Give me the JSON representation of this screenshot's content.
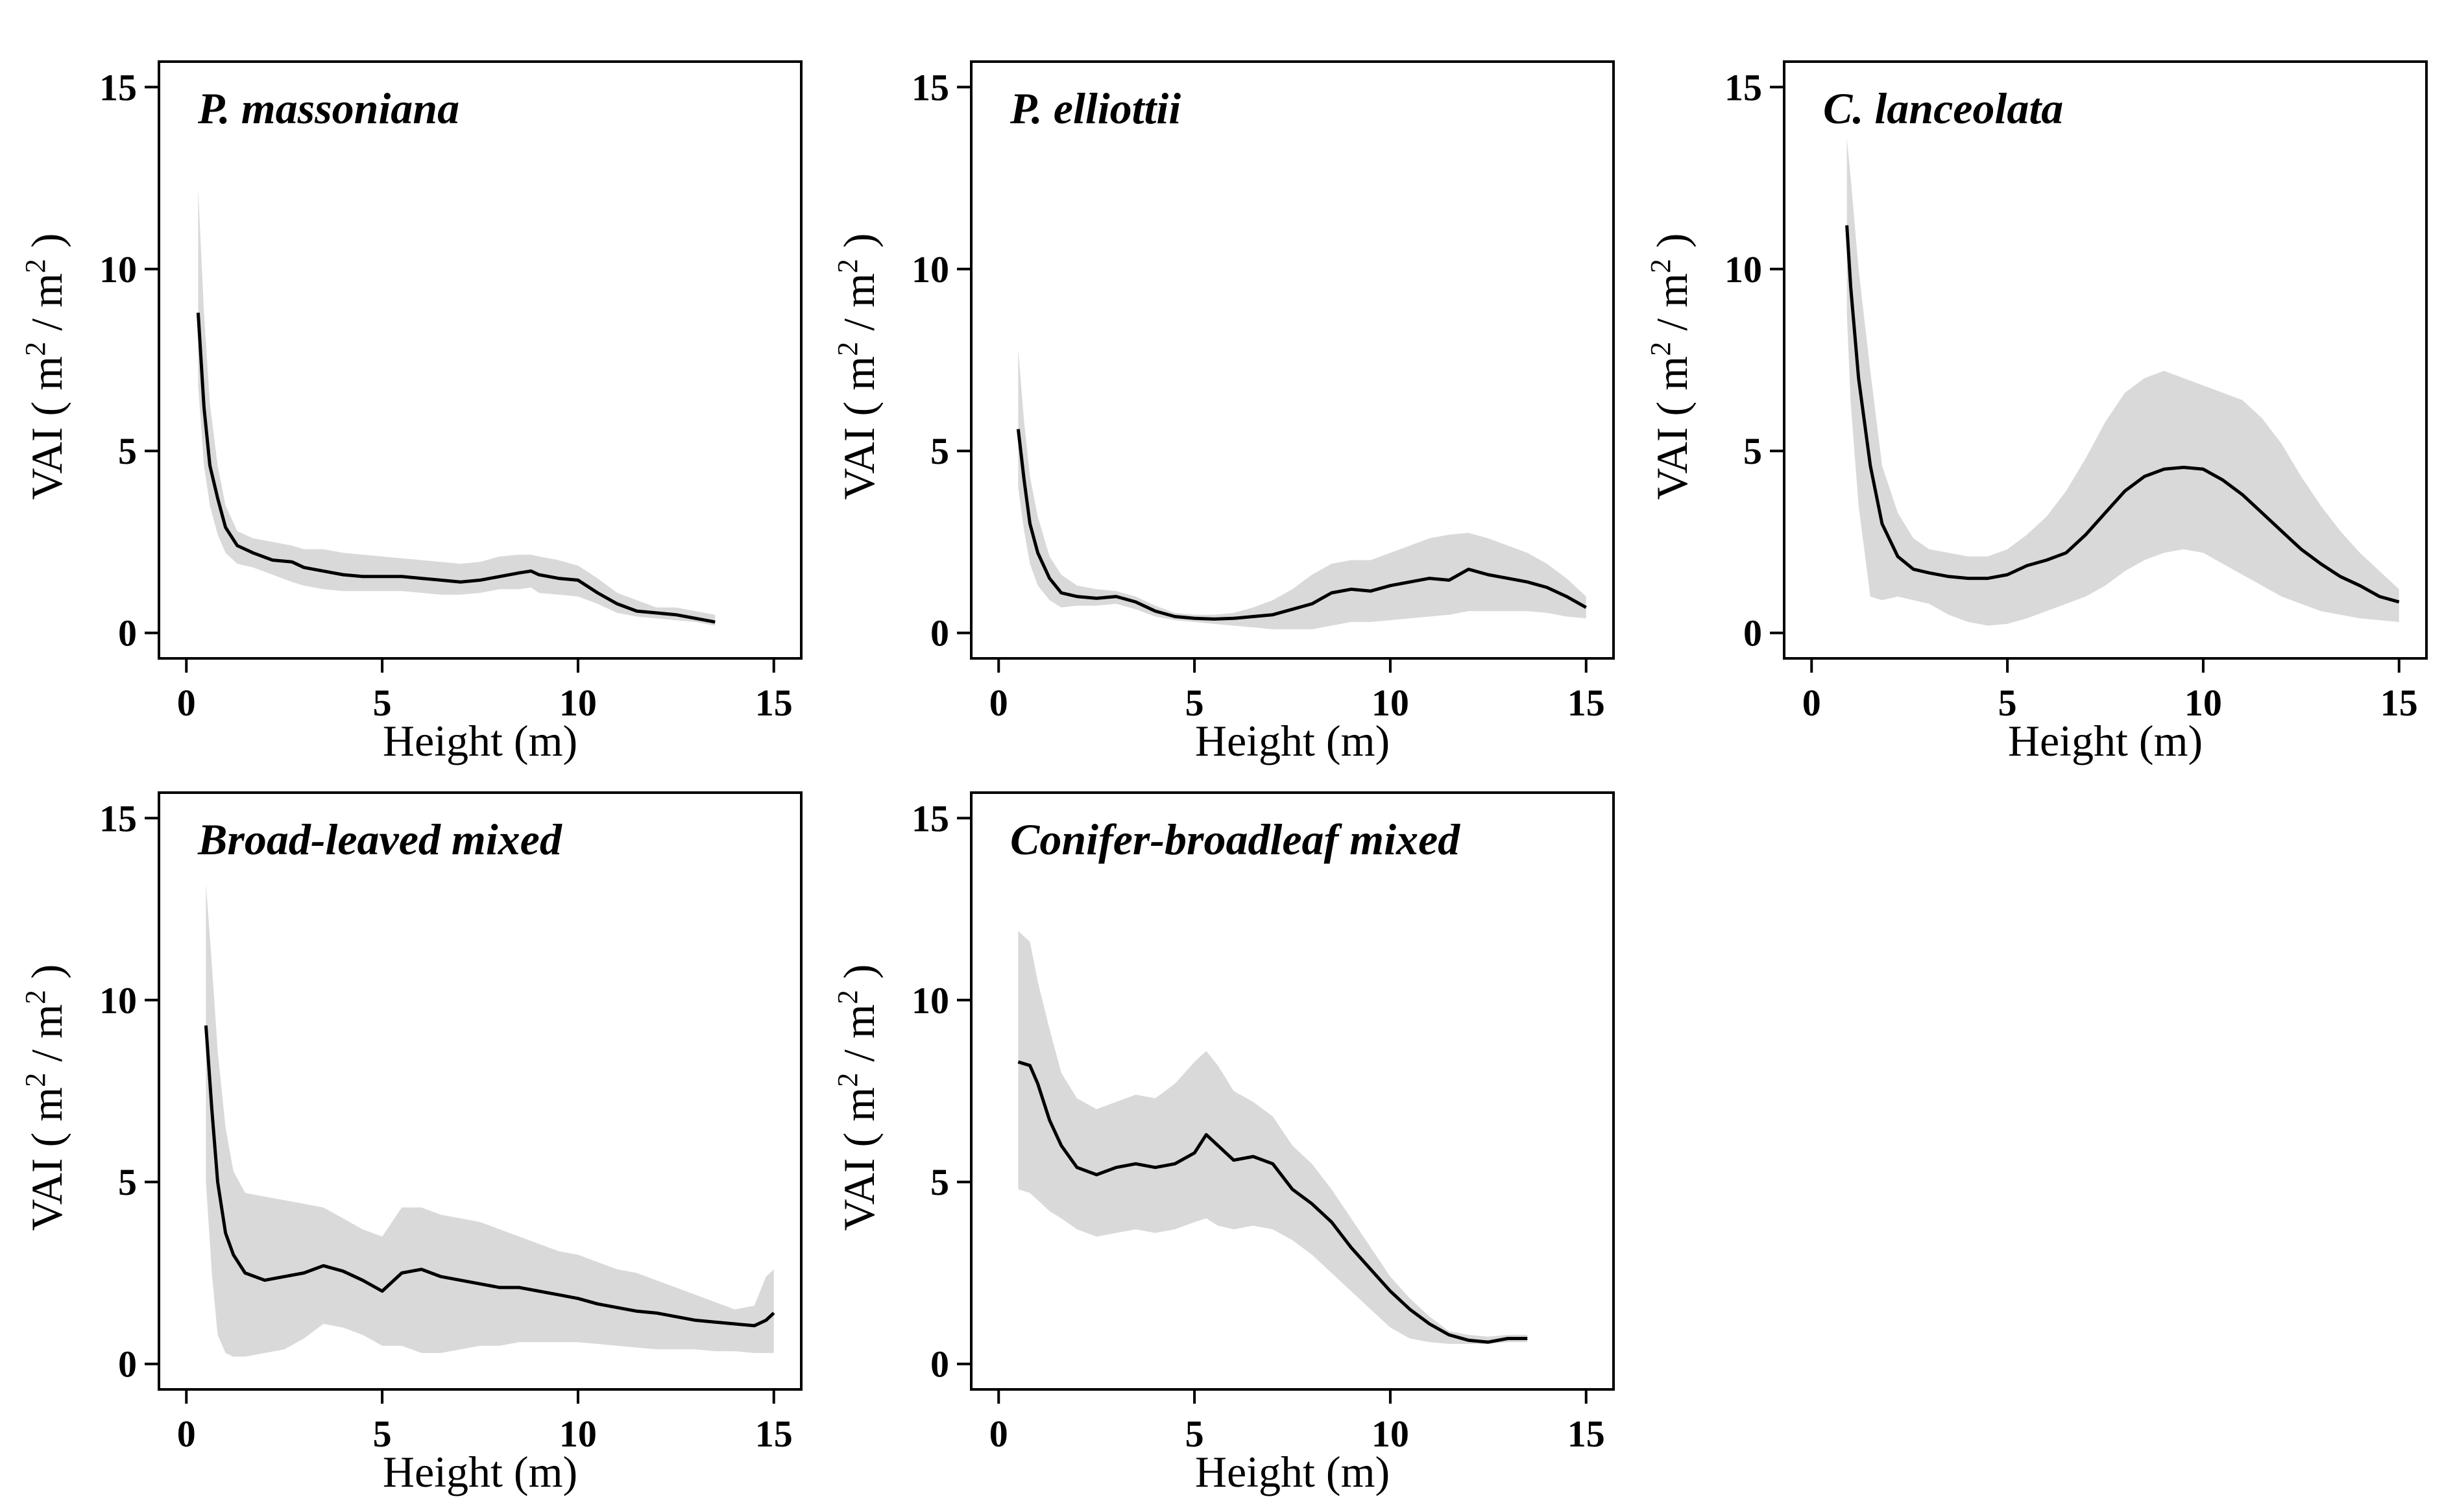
{
  "figure": {
    "background": "#ffffff",
    "band_color": "#d9d9d9",
    "line_color": "#000000",
    "frame_color": "#000000"
  },
  "chart_data": [
    {
      "id": "massoniana",
      "type": "line",
      "title": "P. massoniana",
      "xlabel": "Height (m)",
      "ylabel": "VAI",
      "ylabel_unit": [
        "m",
        "2",
        "m",
        "2"
      ],
      "xlim": [
        -0.7,
        15.7
      ],
      "ylim": [
        -0.7,
        15.7
      ],
      "xticks": [
        0,
        5,
        10,
        15
      ],
      "yticks": [
        0,
        5,
        10,
        15
      ],
      "mean": {
        "x": [
          0.3,
          0.45,
          0.6,
          0.8,
          1.0,
          1.3,
          1.7,
          2.2,
          2.7,
          3.0,
          3.5,
          4.0,
          4.5,
          5.0,
          5.5,
          6.0,
          6.5,
          7.0,
          7.5,
          8.0,
          8.5,
          8.8,
          9.0,
          9.5,
          10.0,
          10.5,
          11.0,
          11.5,
          12.0,
          12.5,
          13.0,
          13.5
        ],
        "y": [
          8.8,
          6.2,
          4.6,
          3.7,
          2.9,
          2.4,
          2.2,
          2.0,
          1.95,
          1.8,
          1.7,
          1.6,
          1.55,
          1.55,
          1.55,
          1.5,
          1.45,
          1.4,
          1.45,
          1.55,
          1.65,
          1.7,
          1.6,
          1.5,
          1.45,
          1.1,
          0.8,
          0.6,
          0.55,
          0.5,
          0.4,
          0.3
        ]
      },
      "band": {
        "x": [
          0.3,
          0.45,
          0.6,
          0.8,
          1.0,
          1.3,
          1.7,
          2.2,
          2.7,
          3.0,
          3.5,
          4.0,
          4.5,
          5.0,
          5.5,
          6.0,
          6.5,
          7.0,
          7.5,
          8.0,
          8.5,
          8.8,
          9.0,
          9.5,
          10.0,
          10.5,
          11.0,
          11.5,
          12.0,
          12.5,
          13.0,
          13.5
        ],
        "upper": [
          12.2,
          8.8,
          6.3,
          4.6,
          3.5,
          2.8,
          2.6,
          2.5,
          2.4,
          2.3,
          2.3,
          2.2,
          2.15,
          2.1,
          2.05,
          2.0,
          1.95,
          1.9,
          1.95,
          2.1,
          2.15,
          2.15,
          2.1,
          2.0,
          1.85,
          1.5,
          1.1,
          0.9,
          0.7,
          0.7,
          0.6,
          0.5
        ],
        "lower": [
          6.8,
          4.6,
          3.5,
          2.7,
          2.2,
          1.9,
          1.8,
          1.6,
          1.4,
          1.3,
          1.2,
          1.15,
          1.15,
          1.15,
          1.15,
          1.1,
          1.05,
          1.05,
          1.1,
          1.2,
          1.2,
          1.25,
          1.1,
          1.05,
          1.0,
          0.8,
          0.55,
          0.45,
          0.4,
          0.35,
          0.3,
          0.2
        ]
      }
    },
    {
      "id": "elliottii",
      "type": "line",
      "title": "P. elliottii",
      "xlabel": "Height (m)",
      "ylabel": "VAI",
      "ylabel_unit": [
        "m",
        "2",
        "m",
        "2"
      ],
      "xlim": [
        -0.7,
        15.7
      ],
      "ylim": [
        -0.7,
        15.7
      ],
      "xticks": [
        0,
        5,
        10,
        15
      ],
      "yticks": [
        0,
        5,
        10,
        15
      ],
      "mean": {
        "x": [
          0.5,
          0.65,
          0.8,
          1.0,
          1.3,
          1.6,
          2.0,
          2.5,
          3.0,
          3.5,
          4.0,
          4.5,
          5.0,
          5.5,
          6.0,
          6.5,
          7.0,
          7.5,
          8.0,
          8.5,
          9.0,
          9.5,
          10.0,
          10.5,
          11.0,
          11.5,
          12.0,
          12.5,
          13.0,
          13.5,
          14.0,
          14.5,
          15.0
        ],
        "y": [
          5.6,
          4.2,
          3.0,
          2.2,
          1.5,
          1.1,
          1.0,
          0.95,
          1.0,
          0.85,
          0.6,
          0.45,
          0.4,
          0.38,
          0.4,
          0.45,
          0.5,
          0.65,
          0.8,
          1.1,
          1.2,
          1.15,
          1.3,
          1.4,
          1.5,
          1.45,
          1.75,
          1.6,
          1.5,
          1.4,
          1.25,
          1.0,
          0.7
        ]
      },
      "band": {
        "x": [
          0.5,
          0.65,
          0.8,
          1.0,
          1.3,
          1.6,
          2.0,
          2.5,
          3.0,
          3.5,
          4.0,
          4.5,
          5.0,
          5.5,
          6.0,
          6.5,
          7.0,
          7.5,
          8.0,
          8.5,
          9.0,
          9.5,
          10.0,
          10.5,
          11.0,
          11.5,
          12.0,
          12.5,
          13.0,
          13.5,
          14.0,
          14.5,
          15.0
        ],
        "upper": [
          7.8,
          5.8,
          4.3,
          3.2,
          2.1,
          1.6,
          1.3,
          1.2,
          1.15,
          1.0,
          0.75,
          0.55,
          0.5,
          0.5,
          0.55,
          0.7,
          0.9,
          1.2,
          1.6,
          1.9,
          2.0,
          2.0,
          2.2,
          2.4,
          2.6,
          2.7,
          2.75,
          2.6,
          2.4,
          2.2,
          1.9,
          1.5,
          1.0
        ],
        "lower": [
          4.0,
          2.8,
          1.9,
          1.3,
          0.9,
          0.7,
          0.75,
          0.75,
          0.8,
          0.65,
          0.45,
          0.35,
          0.3,
          0.25,
          0.2,
          0.15,
          0.1,
          0.1,
          0.1,
          0.2,
          0.3,
          0.3,
          0.35,
          0.4,
          0.45,
          0.5,
          0.6,
          0.6,
          0.6,
          0.6,
          0.55,
          0.45,
          0.4
        ]
      }
    },
    {
      "id": "lanceolata",
      "type": "line",
      "title": "C. lanceolata",
      "xlabel": "Height (m)",
      "ylabel": "VAI",
      "ylabel_unit": [
        "m",
        "2",
        "m",
        "2"
      ],
      "xlim": [
        -0.7,
        15.7
      ],
      "ylim": [
        -0.7,
        15.7
      ],
      "xticks": [
        0,
        5,
        10,
        15
      ],
      "yticks": [
        0,
        5,
        10,
        15
      ],
      "mean": {
        "x": [
          0.9,
          1.0,
          1.2,
          1.5,
          1.8,
          2.2,
          2.6,
          3.0,
          3.5,
          4.0,
          4.5,
          5.0,
          5.5,
          6.0,
          6.5,
          7.0,
          7.5,
          8.0,
          8.5,
          9.0,
          9.5,
          10.0,
          10.5,
          11.0,
          11.5,
          12.0,
          12.5,
          13.0,
          13.5,
          14.0,
          14.5,
          15.0
        ],
        "y": [
          11.2,
          9.5,
          7.0,
          4.6,
          3.0,
          2.1,
          1.75,
          1.65,
          1.55,
          1.5,
          1.5,
          1.6,
          1.85,
          2.0,
          2.2,
          2.7,
          3.3,
          3.9,
          4.3,
          4.5,
          4.55,
          4.5,
          4.2,
          3.8,
          3.3,
          2.8,
          2.3,
          1.9,
          1.55,
          1.3,
          1.0,
          0.85
        ]
      },
      "band": {
        "x": [
          0.9,
          1.0,
          1.2,
          1.5,
          1.8,
          2.2,
          2.6,
          3.0,
          3.5,
          4.0,
          4.5,
          5.0,
          5.5,
          6.0,
          6.5,
          7.0,
          7.5,
          8.0,
          8.5,
          9.0,
          9.5,
          10.0,
          10.5,
          11.0,
          11.5,
          12.0,
          12.5,
          13.0,
          13.5,
          14.0,
          14.5,
          15.0
        ],
        "upper": [
          13.6,
          12.5,
          10.0,
          7.2,
          4.6,
          3.3,
          2.6,
          2.3,
          2.2,
          2.1,
          2.1,
          2.3,
          2.7,
          3.2,
          3.9,
          4.8,
          5.8,
          6.6,
          7.0,
          7.2,
          7.0,
          6.8,
          6.6,
          6.4,
          5.9,
          5.2,
          4.3,
          3.5,
          2.8,
          2.2,
          1.7,
          1.2
        ],
        "lower": [
          8.8,
          6.3,
          3.5,
          1.0,
          0.9,
          1.0,
          0.9,
          0.8,
          0.5,
          0.3,
          0.2,
          0.25,
          0.4,
          0.6,
          0.8,
          1.0,
          1.3,
          1.7,
          2.0,
          2.2,
          2.3,
          2.2,
          1.9,
          1.6,
          1.3,
          1.0,
          0.8,
          0.6,
          0.5,
          0.4,
          0.35,
          0.3
        ]
      }
    },
    {
      "id": "broadleaved",
      "type": "line",
      "title": "Broad-leaved mixed",
      "xlabel": "Height (m)",
      "ylabel": "VAI",
      "ylabel_unit": [
        "m",
        "2",
        "m",
        "2"
      ],
      "xlim": [
        -0.7,
        15.7
      ],
      "ylim": [
        -0.7,
        15.7
      ],
      "xticks": [
        0,
        5,
        10,
        15
      ],
      "yticks": [
        0,
        5,
        10,
        15
      ],
      "mean": {
        "x": [
          0.5,
          0.65,
          0.8,
          1.0,
          1.2,
          1.5,
          2.0,
          2.5,
          3.0,
          3.5,
          4.0,
          4.5,
          5.0,
          5.5,
          6.0,
          6.5,
          7.0,
          7.5,
          8.0,
          8.5,
          9.0,
          9.5,
          10.0,
          10.5,
          11.0,
          11.5,
          12.0,
          12.5,
          13.0,
          13.5,
          14.0,
          14.5,
          14.8,
          15.0
        ],
        "y": [
          9.3,
          7.0,
          5.0,
          3.6,
          3.0,
          2.5,
          2.3,
          2.4,
          2.5,
          2.7,
          2.55,
          2.3,
          2.0,
          2.5,
          2.6,
          2.4,
          2.3,
          2.2,
          2.1,
          2.1,
          2.0,
          1.9,
          1.8,
          1.65,
          1.55,
          1.45,
          1.4,
          1.3,
          1.2,
          1.15,
          1.1,
          1.05,
          1.2,
          1.4
        ]
      },
      "band": {
        "x": [
          0.5,
          0.65,
          0.8,
          1.0,
          1.2,
          1.5,
          2.0,
          2.5,
          3.0,
          3.5,
          4.0,
          4.5,
          5.0,
          5.5,
          6.0,
          6.5,
          7.0,
          7.5,
          8.0,
          8.5,
          9.0,
          9.5,
          10.0,
          10.5,
          11.0,
          11.5,
          12.0,
          12.5,
          13.0,
          13.5,
          14.0,
          14.5,
          14.8,
          15.0
        ],
        "upper": [
          13.2,
          11.0,
          8.6,
          6.5,
          5.3,
          4.7,
          4.6,
          4.5,
          4.4,
          4.3,
          4.0,
          3.7,
          3.5,
          4.3,
          4.3,
          4.1,
          4.0,
          3.9,
          3.7,
          3.5,
          3.3,
          3.1,
          3.0,
          2.8,
          2.6,
          2.5,
          2.3,
          2.1,
          1.9,
          1.7,
          1.5,
          1.6,
          2.4,
          2.6
        ],
        "lower": [
          5.0,
          2.5,
          0.8,
          0.3,
          0.2,
          0.2,
          0.3,
          0.4,
          0.7,
          1.1,
          1.0,
          0.8,
          0.5,
          0.5,
          0.3,
          0.3,
          0.4,
          0.5,
          0.5,
          0.6,
          0.6,
          0.6,
          0.6,
          0.55,
          0.5,
          0.45,
          0.4,
          0.4,
          0.4,
          0.35,
          0.35,
          0.3,
          0.3,
          0.3
        ]
      }
    },
    {
      "id": "conifer",
      "type": "line",
      "title": "Conifer-broadleaf mixed",
      "xlabel": "Height (m)",
      "ylabel": "VAI",
      "ylabel_unit": [
        "m",
        "2",
        "m",
        "2"
      ],
      "xlim": [
        -0.7,
        15.7
      ],
      "ylim": [
        -0.7,
        15.7
      ],
      "xticks": [
        0,
        5,
        10,
        15
      ],
      "yticks": [
        0,
        5,
        10,
        15
      ],
      "mean": {
        "x": [
          0.5,
          0.8,
          1.0,
          1.3,
          1.6,
          2.0,
          2.5,
          3.0,
          3.5,
          4.0,
          4.5,
          5.0,
          5.3,
          5.6,
          6.0,
          6.5,
          7.0,
          7.5,
          8.0,
          8.5,
          9.0,
          9.5,
          10.0,
          10.5,
          11.0,
          11.5,
          12.0,
          12.5,
          13.0,
          13.5
        ],
        "y": [
          8.3,
          8.2,
          7.7,
          6.7,
          6.0,
          5.4,
          5.2,
          5.4,
          5.5,
          5.4,
          5.5,
          5.8,
          6.3,
          6.0,
          5.6,
          5.7,
          5.5,
          4.8,
          4.4,
          3.9,
          3.2,
          2.6,
          2.0,
          1.5,
          1.1,
          0.8,
          0.65,
          0.6,
          0.7,
          0.7
        ]
      },
      "band": {
        "x": [
          0.5,
          0.8,
          1.0,
          1.3,
          1.6,
          2.0,
          2.5,
          3.0,
          3.5,
          4.0,
          4.5,
          5.0,
          5.3,
          5.6,
          6.0,
          6.5,
          7.0,
          7.5,
          8.0,
          8.5,
          9.0,
          9.5,
          10.0,
          10.5,
          11.0,
          11.5,
          12.0,
          12.5,
          13.0,
          13.5
        ],
        "upper": [
          11.9,
          11.6,
          10.5,
          9.2,
          8.0,
          7.3,
          7.0,
          7.2,
          7.4,
          7.3,
          7.7,
          8.3,
          8.6,
          8.2,
          7.5,
          7.2,
          6.8,
          6.0,
          5.5,
          4.8,
          4.0,
          3.2,
          2.4,
          1.8,
          1.3,
          0.9,
          0.8,
          0.75,
          0.8,
          0.8
        ],
        "lower": [
          4.8,
          4.7,
          4.5,
          4.2,
          4.0,
          3.7,
          3.5,
          3.6,
          3.7,
          3.6,
          3.7,
          3.9,
          4.0,
          3.8,
          3.7,
          3.8,
          3.7,
          3.4,
          3.0,
          2.5,
          2.0,
          1.5,
          1.0,
          0.7,
          0.6,
          0.55,
          0.55,
          0.55,
          0.6,
          0.6
        ]
      }
    }
  ]
}
